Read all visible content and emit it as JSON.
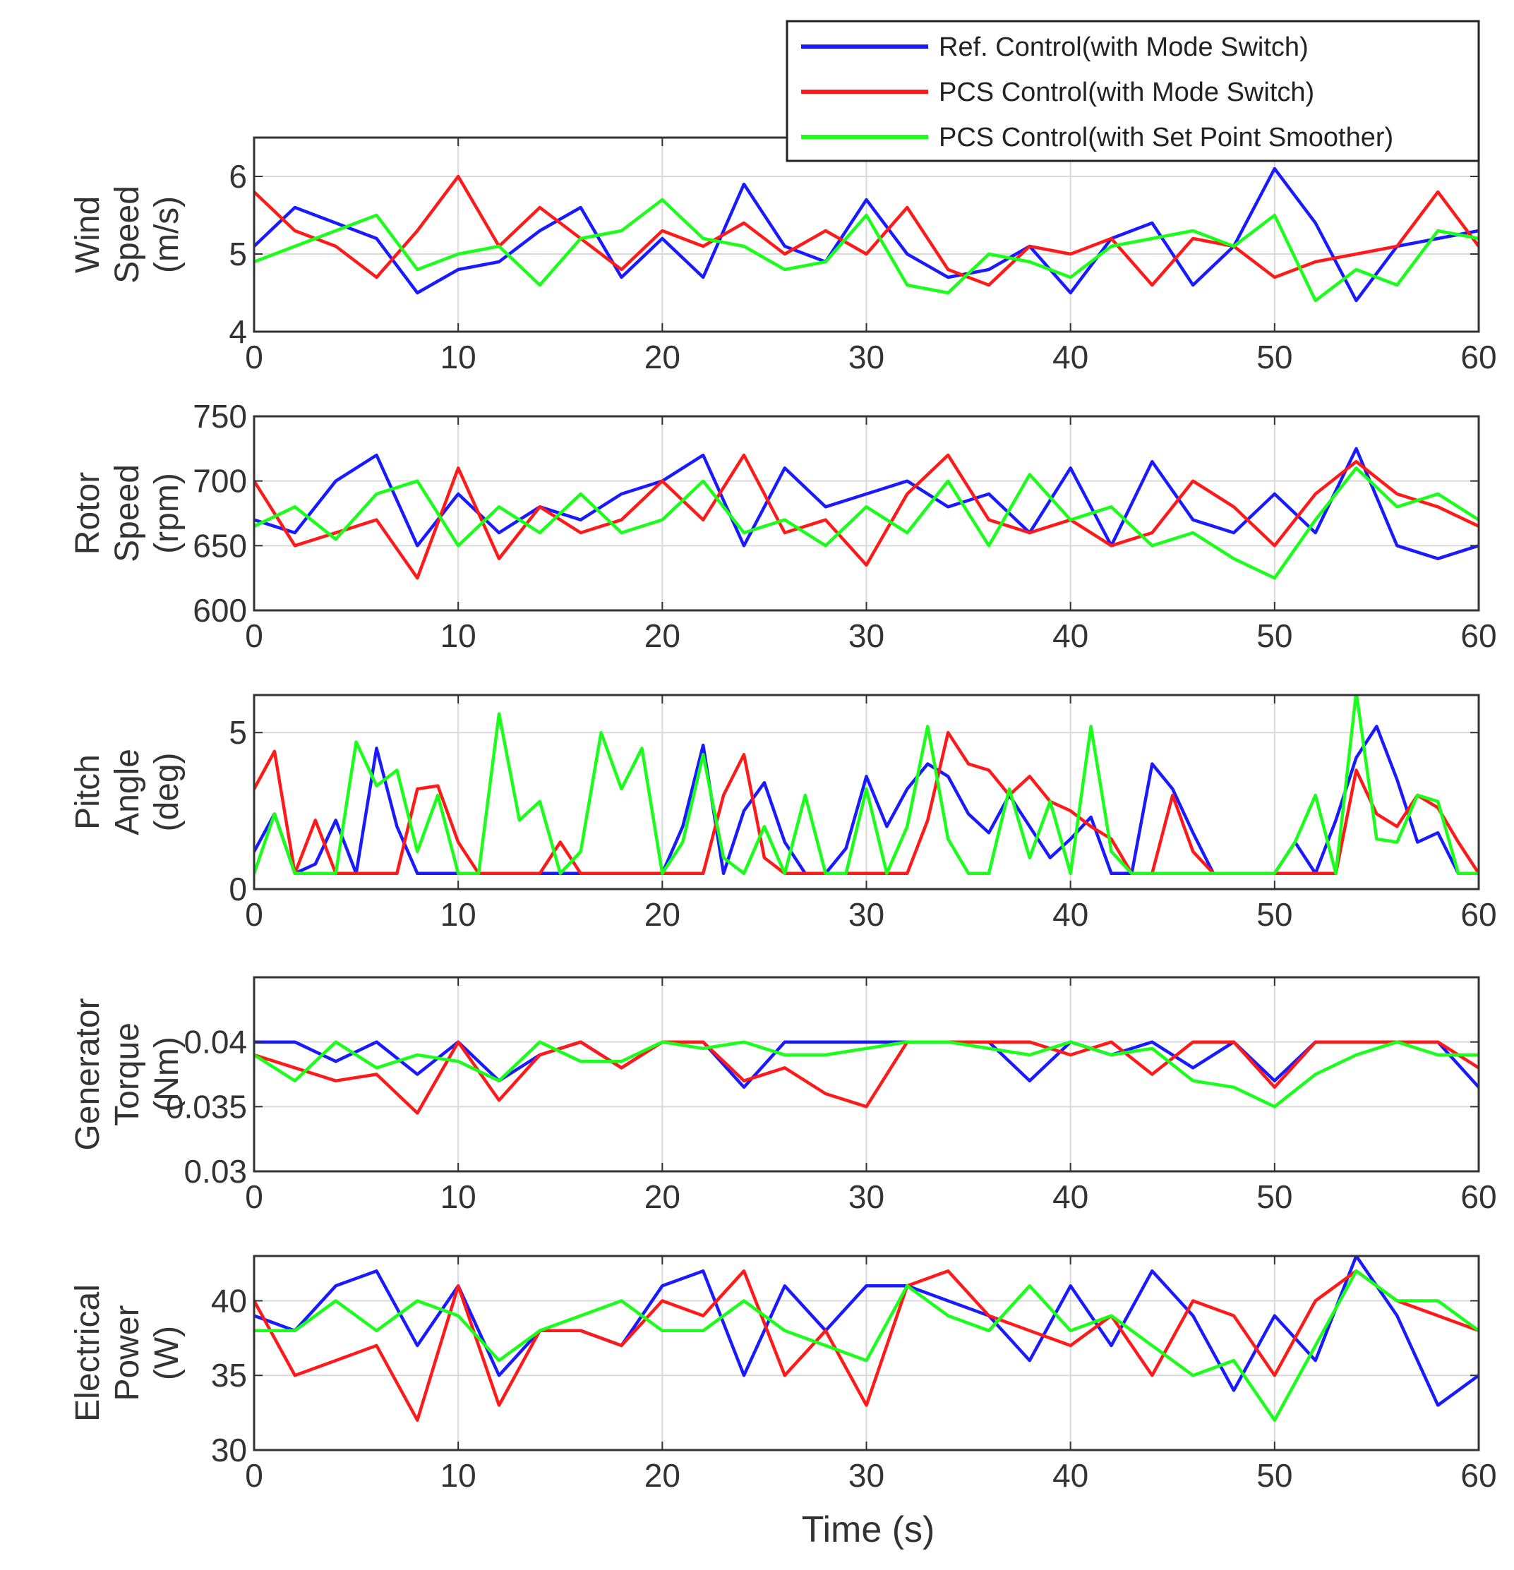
{
  "colors": {
    "ref": "#1a1aff",
    "pcs_mode": "#ff1a1a",
    "pcs_smooth": "#1aff1a"
  },
  "legend": [
    {
      "label": "Ref. Control(with Mode Switch)",
      "series": "ref"
    },
    {
      "label": "PCS Control(with Mode Switch)",
      "series": "pcs_mode"
    },
    {
      "label": "PCS Control(with Set Point Smoother)",
      "series": "pcs_smooth"
    }
  ],
  "chart_data": [
    {
      "type": "line",
      "ylabel_lines": [
        "Wind",
        "Speed",
        "(m/s)"
      ],
      "xlabel": "",
      "xlim": [
        0,
        60
      ],
      "ylim": [
        4,
        6.5
      ],
      "xticks": [
        0,
        10,
        20,
        30,
        40,
        50,
        60
      ],
      "yticks": [
        4,
        5,
        6
      ],
      "ytick_labels": [
        "4",
        "5",
        "6"
      ],
      "x": [
        0,
        2,
        4,
        6,
        8,
        10,
        12,
        14,
        16,
        18,
        20,
        22,
        24,
        26,
        28,
        30,
        32,
        34,
        36,
        38,
        40,
        42,
        44,
        46,
        48,
        50,
        52,
        54,
        56,
        58,
        60
      ],
      "series": [
        {
          "key": "ref",
          "name": "Ref. Control(with Mode Switch)",
          "values": [
            5.1,
            5.6,
            5.4,
            5.2,
            4.5,
            4.8,
            4.9,
            5.3,
            5.6,
            4.7,
            5.2,
            4.7,
            5.9,
            5.1,
            4.9,
            5.7,
            5.0,
            4.7,
            4.8,
            5.1,
            4.5,
            5.2,
            5.4,
            4.6,
            5.1,
            6.1,
            5.4,
            4.4,
            5.1,
            5.2,
            5.3
          ]
        },
        {
          "key": "pcs_mode",
          "name": "PCS Control(with Mode Switch)",
          "values": [
            5.8,
            5.3,
            5.1,
            4.7,
            5.3,
            6.0,
            5.1,
            5.6,
            5.2,
            4.8,
            5.3,
            5.1,
            5.4,
            5.0,
            5.3,
            5.0,
            5.6,
            4.8,
            4.6,
            5.1,
            5.0,
            5.2,
            4.6,
            5.2,
            5.1,
            4.7,
            4.9,
            5.0,
            5.1,
            5.8,
            5.1
          ]
        },
        {
          "key": "pcs_smooth",
          "name": "PCS Control(with Set Point Smoother)",
          "values": [
            4.9,
            5.1,
            5.3,
            5.5,
            4.8,
            5.0,
            5.1,
            4.6,
            5.2,
            5.3,
            5.7,
            5.2,
            5.1,
            4.8,
            4.9,
            5.5,
            4.6,
            4.5,
            5.0,
            4.9,
            4.7,
            5.1,
            5.2,
            5.3,
            5.1,
            5.5,
            4.4,
            4.8,
            4.6,
            5.3,
            5.2
          ]
        }
      ]
    },
    {
      "type": "line",
      "ylabel_lines": [
        "Rotor",
        "Speed",
        "(rpm)"
      ],
      "xlabel": "",
      "xlim": [
        0,
        60
      ],
      "ylim": [
        600,
        750
      ],
      "xticks": [
        0,
        10,
        20,
        30,
        40,
        50,
        60
      ],
      "yticks": [
        600,
        650,
        700,
        750
      ],
      "ytick_labels": [
        "600",
        "650",
        "700",
        "750"
      ],
      "x": [
        0,
        2,
        4,
        6,
        8,
        10,
        12,
        14,
        16,
        18,
        20,
        22,
        24,
        26,
        28,
        30,
        32,
        34,
        36,
        38,
        40,
        42,
        44,
        46,
        48,
        50,
        52,
        54,
        56,
        58,
        60
      ],
      "series": [
        {
          "key": "ref",
          "name": "Ref. Control(with Mode Switch)",
          "values": [
            670,
            660,
            700,
            720,
            650,
            690,
            660,
            680,
            670,
            690,
            700,
            720,
            650,
            710,
            680,
            690,
            700,
            680,
            690,
            660,
            710,
            650,
            715,
            670,
            660,
            690,
            660,
            725,
            650,
            640,
            650
          ]
        },
        {
          "key": "pcs_mode",
          "name": "PCS Control(with Mode Switch)",
          "values": [
            700,
            650,
            660,
            670,
            625,
            710,
            640,
            680,
            660,
            670,
            700,
            670,
            720,
            660,
            670,
            635,
            690,
            720,
            670,
            660,
            670,
            650,
            660,
            700,
            680,
            650,
            690,
            715,
            690,
            680,
            665
          ]
        },
        {
          "key": "pcs_smooth",
          "name": "PCS Control(with Set Point Smoother)",
          "values": [
            665,
            680,
            655,
            690,
            700,
            650,
            680,
            660,
            690,
            660,
            670,
            700,
            660,
            670,
            650,
            680,
            660,
            700,
            650,
            705,
            670,
            680,
            650,
            660,
            640,
            625,
            670,
            710,
            680,
            690,
            670
          ]
        }
      ]
    },
    {
      "type": "line",
      "ylabel_lines": [
        "Pitch",
        "Angle",
        "(deg)"
      ],
      "xlabel": "",
      "xlim": [
        0,
        60
      ],
      "ylim": [
        0,
        6.2
      ],
      "xticks": [
        0,
        10,
        20,
        30,
        40,
        50,
        60
      ],
      "yticks": [
        0,
        5
      ],
      "ytick_labels": [
        "0",
        "5"
      ],
      "x": [
        0,
        1,
        2,
        3,
        4,
        5,
        6,
        7,
        8,
        9,
        10,
        11,
        12,
        13,
        14,
        15,
        16,
        17,
        18,
        19,
        20,
        21,
        22,
        23,
        24,
        25,
        26,
        27,
        28,
        29,
        30,
        31,
        32,
        33,
        34,
        35,
        36,
        37,
        38,
        39,
        40,
        41,
        42,
        43,
        44,
        45,
        46,
        47,
        48,
        49,
        50,
        51,
        52,
        53,
        54,
        55,
        56,
        57,
        58,
        59,
        60
      ],
      "series": [
        {
          "key": "ref",
          "name": "Ref. Control(with Mode Switch)",
          "values": [
            1.2,
            2.4,
            0.5,
            0.8,
            2.2,
            0.5,
            4.5,
            2.0,
            0.5,
            0.5,
            0.5,
            0.5,
            0.5,
            0.5,
            0.5,
            0.5,
            0.5,
            0.5,
            0.5,
            0.5,
            0.5,
            2.0,
            4.6,
            0.5,
            2.5,
            3.4,
            1.5,
            0.5,
            0.5,
            1.3,
            3.6,
            2.0,
            3.2,
            4.0,
            3.6,
            2.4,
            1.8,
            3.0,
            2.0,
            1.0,
            1.6,
            2.3,
            0.5,
            0.5,
            4.0,
            3.2,
            1.8,
            0.5,
            0.5,
            0.5,
            0.5,
            1.5,
            0.5,
            2.2,
            4.2,
            5.2,
            3.5,
            1.5,
            1.8,
            0.5,
            0.5
          ]
        },
        {
          "key": "pcs_mode",
          "name": "PCS Control(with Mode Switch)",
          "values": [
            3.2,
            4.4,
            0.5,
            2.2,
            0.5,
            0.5,
            0.5,
            0.5,
            3.2,
            3.3,
            1.5,
            0.5,
            0.5,
            0.5,
            0.5,
            1.5,
            0.5,
            0.5,
            0.5,
            0.5,
            0.5,
            0.5,
            0.5,
            3.0,
            4.3,
            1.0,
            0.5,
            0.5,
            0.5,
            0.5,
            0.5,
            0.5,
            0.5,
            2.2,
            5.0,
            4.0,
            3.8,
            3.0,
            3.6,
            2.8,
            2.5,
            2.0,
            1.6,
            0.5,
            0.5,
            3.0,
            1.2,
            0.5,
            0.5,
            0.5,
            0.5,
            0.5,
            0.5,
            0.5,
            3.8,
            2.4,
            2.0,
            3.0,
            2.6,
            1.5,
            0.5
          ]
        },
        {
          "key": "pcs_smooth",
          "name": "PCS Control(with Set Point Smoother)",
          "values": [
            0.5,
            2.4,
            0.5,
            0.5,
            0.5,
            4.7,
            3.3,
            3.8,
            1.2,
            3.0,
            0.5,
            0.5,
            5.6,
            2.2,
            2.8,
            0.5,
            1.2,
            5.0,
            3.2,
            4.5,
            0.5,
            1.5,
            4.3,
            1.0,
            0.5,
            2.0,
            0.5,
            3.0,
            0.5,
            0.5,
            3.2,
            0.5,
            2.0,
            5.2,
            1.6,
            0.5,
            0.5,
            3.2,
            1.0,
            2.8,
            0.5,
            5.2,
            1.2,
            0.5,
            0.5,
            0.5,
            0.5,
            0.5,
            0.5,
            0.5,
            0.5,
            1.5,
            3.0,
            0.5,
            6.3,
            1.6,
            1.5,
            3.0,
            2.8,
            0.5,
            0.5
          ]
        }
      ]
    },
    {
      "type": "line",
      "ylabel_lines": [
        "Generator",
        "Torque",
        "(Nm)"
      ],
      "xlabel": "",
      "xlim": [
        0,
        60
      ],
      "ylim": [
        0.03,
        0.045
      ],
      "xticks": [
        0,
        10,
        20,
        30,
        40,
        50,
        60
      ],
      "yticks": [
        0.03,
        0.035,
        0.04
      ],
      "ytick_labels": [
        "0.03",
        "0.035",
        "0.04"
      ],
      "x": [
        0,
        2,
        4,
        6,
        8,
        10,
        12,
        14,
        16,
        18,
        20,
        22,
        24,
        26,
        28,
        30,
        32,
        34,
        36,
        38,
        40,
        42,
        44,
        46,
        48,
        50,
        52,
        54,
        56,
        58,
        60
      ],
      "series": [
        {
          "key": "ref",
          "name": "Ref. Control(with Mode Switch)",
          "values": [
            0.04,
            0.04,
            0.0385,
            0.04,
            0.0375,
            0.04,
            0.037,
            0.039,
            0.04,
            0.038,
            0.04,
            0.04,
            0.0365,
            0.04,
            0.04,
            0.04,
            0.04,
            0.04,
            0.04,
            0.037,
            0.04,
            0.039,
            0.04,
            0.038,
            0.04,
            0.037,
            0.04,
            0.04,
            0.04,
            0.04,
            0.0365
          ]
        },
        {
          "key": "pcs_mode",
          "name": "PCS Control(with Mode Switch)",
          "values": [
            0.039,
            0.038,
            0.037,
            0.0375,
            0.0345,
            0.04,
            0.0355,
            0.039,
            0.04,
            0.038,
            0.04,
            0.04,
            0.037,
            0.038,
            0.036,
            0.035,
            0.04,
            0.04,
            0.04,
            0.04,
            0.039,
            0.04,
            0.0375,
            0.04,
            0.04,
            0.0365,
            0.04,
            0.04,
            0.04,
            0.04,
            0.038
          ]
        },
        {
          "key": "pcs_smooth",
          "name": "PCS Control(with Set Point Smoother)",
          "values": [
            0.039,
            0.037,
            0.04,
            0.038,
            0.039,
            0.0385,
            0.037,
            0.04,
            0.0385,
            0.0385,
            0.04,
            0.0395,
            0.04,
            0.039,
            0.039,
            0.0395,
            0.04,
            0.04,
            0.0395,
            0.039,
            0.04,
            0.039,
            0.0395,
            0.037,
            0.0365,
            0.035,
            0.0375,
            0.039,
            0.04,
            0.039,
            0.039
          ]
        }
      ]
    },
    {
      "type": "line",
      "ylabel_lines": [
        "Electrical",
        "Power",
        "(W)"
      ],
      "xlabel": "Time (s)",
      "xlim": [
        0,
        60
      ],
      "ylim": [
        30,
        43
      ],
      "xticks": [
        0,
        10,
        20,
        30,
        40,
        50,
        60
      ],
      "yticks": [
        30,
        35,
        40
      ],
      "ytick_labels": [
        "30",
        "35",
        "40"
      ],
      "x": [
        0,
        2,
        4,
        6,
        8,
        10,
        12,
        14,
        16,
        18,
        20,
        22,
        24,
        26,
        28,
        30,
        32,
        34,
        36,
        38,
        40,
        42,
        44,
        46,
        48,
        50,
        52,
        54,
        56,
        58,
        60
      ],
      "series": [
        {
          "key": "ref",
          "name": "Ref. Control(with Mode Switch)",
          "values": [
            39,
            38,
            41,
            42,
            37,
            41,
            35,
            38,
            38,
            37,
            41,
            42,
            35,
            41,
            38,
            41,
            41,
            40,
            39,
            36,
            41,
            37,
            42,
            39,
            34,
            39,
            36,
            43,
            39,
            33,
            35
          ]
        },
        {
          "key": "pcs_mode",
          "name": "PCS Control(with Mode Switch)",
          "values": [
            40,
            35,
            36,
            37,
            32,
            41,
            33,
            38,
            38,
            37,
            40,
            39,
            42,
            35,
            38,
            33,
            41,
            42,
            39,
            38,
            37,
            39,
            35,
            40,
            39,
            35,
            40,
            42,
            40,
            39,
            38
          ]
        },
        {
          "key": "pcs_smooth",
          "name": "PCS Control(with Set Point Smoother)",
          "values": [
            38,
            38,
            40,
            38,
            40,
            39,
            36,
            38,
            39,
            40,
            38,
            38,
            40,
            38,
            37,
            36,
            41,
            39,
            38,
            41,
            38,
            39,
            37,
            35,
            36,
            32,
            37,
            42,
            40,
            40,
            38
          ]
        }
      ]
    }
  ]
}
